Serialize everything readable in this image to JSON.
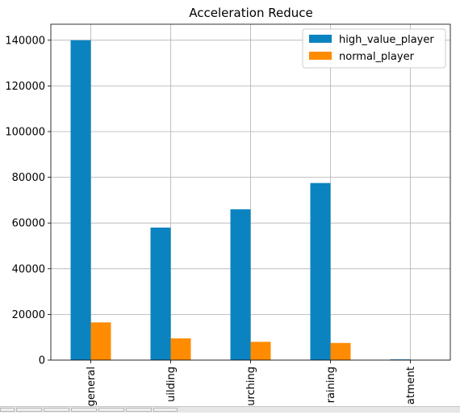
{
  "chart_data": {
    "type": "bar",
    "title": "Acceleration Reduce",
    "xlabel": "",
    "ylabel": "",
    "categories": [
      "general",
      "uilding",
      "urching",
      "raining",
      "atment"
    ],
    "series": [
      {
        "name": "high_value_player",
        "values": [
          140000,
          58000,
          66000,
          77500,
          300
        ],
        "color": "#0a83c0"
      },
      {
        "name": "normal_player",
        "values": [
          16500,
          9500,
          8000,
          7500,
          0
        ],
        "color": "#ff8c00"
      }
    ],
    "ylim": [
      0,
      147000
    ],
    "yticks": [
      0,
      20000,
      40000,
      60000,
      80000,
      100000,
      120000,
      140000
    ],
    "grid": true,
    "legend_position": "top-right"
  }
}
